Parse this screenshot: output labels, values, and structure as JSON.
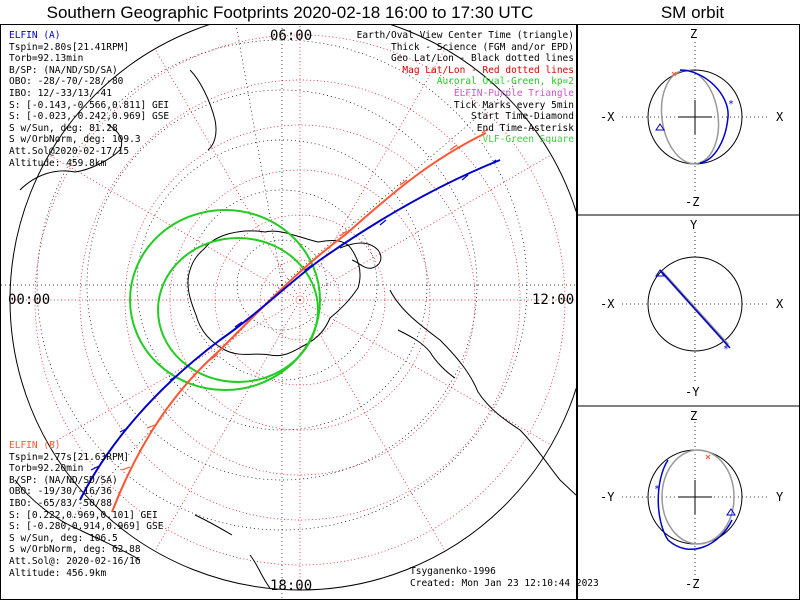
{
  "title": "Southern Geographic Footprints 2020-02-18 16:00 to 17:30 UTC",
  "sm_title": "SM orbit",
  "time_labels": {
    "top": "06:00",
    "left": "00:00",
    "right": "12:00",
    "bottom": "18:00"
  },
  "elfin_a": {
    "header": "ELFIN (A)",
    "lines": [
      "Tspin=2.80s[21.41RPM]",
      "Torb=92.13min",
      "B/SP: (NA/ND/SD/SA)",
      "OBO: -28/-70/-28/-80",
      "IBO: 12/-33/13/-41",
      "S: [-0.143,-0.566,0.811] GEI",
      "S: [-0.023,-0.242,0.969] GSE",
      "S w/Sun, deg: 81.28",
      "S w/OrbNorm, deg: 109.3",
      "Att.Sol@2020-02-17/15",
      "Altitude: 459.8km"
    ],
    "color": "#0000cc"
  },
  "elfin_b": {
    "header": "ELFIN (B)",
    "lines": [
      "Tspin=2.77s[21.63RPM]",
      "Torb=92.20min",
      "B/SP: (NA/ND/SD/SA)",
      "OBO: -19/30/-16/36",
      "IBO: -65/83/-50/88",
      "S: [0.222,0.969,0.101] GEI",
      "S: [-0.280,0.914,0.969] GSE",
      "S w/Sun, deg: 106.5",
      "S w/OrbNorm, deg: 62.88",
      "Att.Sol@: 2020-02-16/16",
      "Altitude: 456.9km"
    ],
    "color": "#ff5533"
  },
  "legend": [
    {
      "text": "Earth/Oval View Center Time (triangle)",
      "color": "#000000"
    },
    {
      "text": "Thick - Science (FGM and/or EPD)",
      "color": "#000000"
    },
    {
      "text": "Geo Lat/Lon - Black dotted lines",
      "color": "#000000"
    },
    {
      "text": "Mag Lat/Lon - Red dotted lines",
      "color": "#dd0000"
    },
    {
      "text": "Auroral Oval-Green, kp=2",
      "color": "#22cc22"
    },
    {
      "text": "ELFIN-Purple Triangle",
      "color": "#cc55cc"
    },
    {
      "text": "Tick Marks every 5min",
      "color": "#000000"
    },
    {
      "text": "Start Time-Diamond",
      "color": "#000000"
    },
    {
      "text": "End Time-Asterisk",
      "color": "#000000"
    },
    {
      "text": "VLF-Green Square",
      "color": "#44cc44"
    }
  ],
  "credit": {
    "author": "Tsyganenko-1996",
    "created": "Created: Mon Jan 23 12:10:44 2023"
  },
  "sm_panels": [
    {
      "top": "Z",
      "bottom": "-Z",
      "left": "-X",
      "right": "X"
    },
    {
      "top": "Y",
      "bottom": "-Y",
      "left": "-X",
      "right": "X"
    },
    {
      "top": "Z",
      "bottom": "-Z",
      "left": "-Y",
      "right": "Y"
    }
  ],
  "colors": {
    "elfin_a": "#0000cc",
    "elfin_b": "#ff5533",
    "oval": "#22cc22",
    "mag_grid": "#dd0000",
    "geo_grid": "#000000"
  }
}
